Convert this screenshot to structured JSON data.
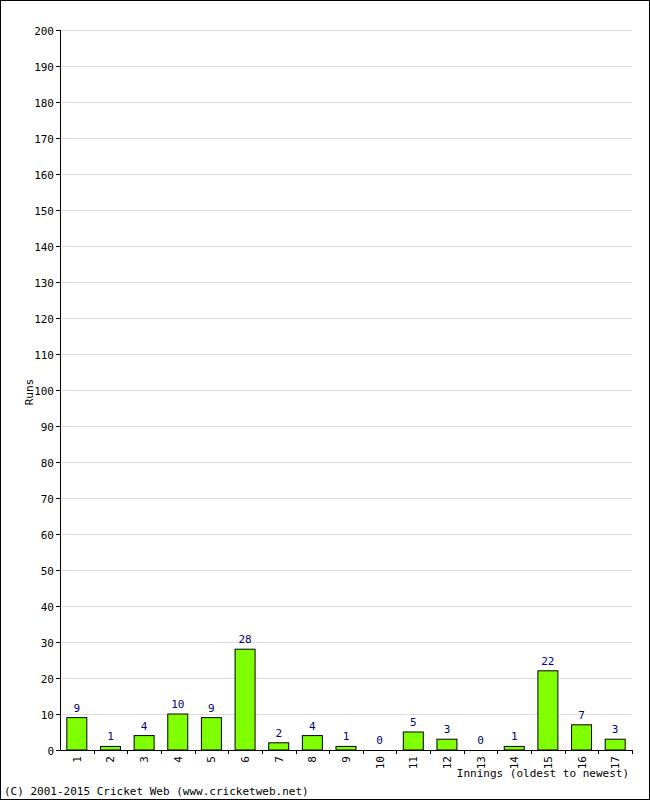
{
  "chart_data": {
    "type": "bar",
    "x_label": "Innings (oldest to newest)",
    "y_label": "Runs",
    "annotations": [
      "(C) 2001-2015 Cricket Web (www.cricketweb.net)"
    ],
    "categories": [
      "1",
      "2",
      "3",
      "4",
      "5",
      "6",
      "7",
      "8",
      "9",
      "10",
      "11",
      "12",
      "13",
      "14",
      "15",
      "16",
      "17"
    ],
    "values": [
      9,
      1,
      4,
      10,
      9,
      28,
      2,
      4,
      1,
      0,
      5,
      3,
      0,
      1,
      22,
      7,
      3
    ],
    "color": "#80ff00",
    "ylim": [
      0,
      200
    ],
    "yticks": [
      0,
      10,
      20,
      30,
      40,
      50,
      60,
      70,
      80,
      90,
      100,
      110,
      120,
      130,
      140,
      150,
      160,
      170,
      180,
      190,
      200
    ],
    "grid": true,
    "data_labels": true
  }
}
